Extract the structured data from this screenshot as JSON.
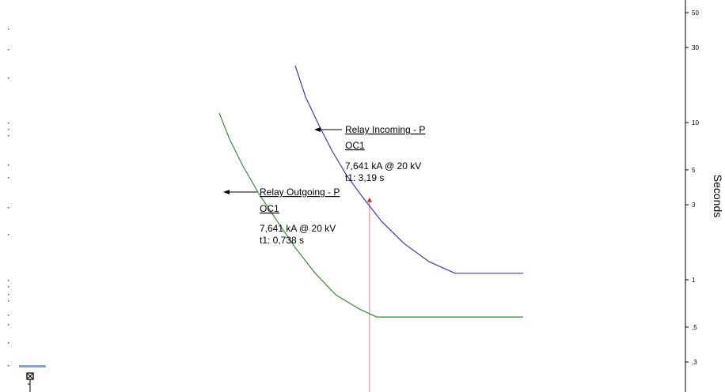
{
  "chart_data": {
    "type": "line",
    "ylabel": "Seconds",
    "y_scale": "log",
    "ylim": [
      0.2,
      55
    ],
    "y_ticks": [
      {
        "value": 50,
        "label": "50"
      },
      {
        "value": 30,
        "label": "30"
      },
      {
        "value": 10,
        "label": "10"
      },
      {
        "value": 5,
        "label": "5"
      },
      {
        "value": 3,
        "label": "3"
      },
      {
        "value": 1,
        "label": "1"
      },
      {
        "value": 0.5,
        "label": ",5"
      },
      {
        "value": 0.3,
        "label": ",3"
      }
    ],
    "series": [
      {
        "name": "Relay Incoming - P OC1",
        "color": "#3b3bb0",
        "points": [
          [
            1.0,
            23
          ],
          [
            1.1,
            14.5
          ],
          [
            1.25,
            9.4
          ],
          [
            1.4,
            6.6
          ],
          [
            1.6,
            4.6
          ],
          [
            1.85,
            3.35
          ],
          [
            2.2,
            2.35
          ],
          [
            2.7,
            1.7
          ],
          [
            3.4,
            1.3
          ],
          [
            4.3,
            1.1
          ],
          [
            4.3,
            1.1
          ],
          [
            8.0,
            1.1
          ]
        ]
      },
      {
        "name": "Relay Outgoing - P OC1",
        "color": "#3a8a3a",
        "points": [
          [
            0.5,
            11.5
          ],
          [
            0.55,
            7.8
          ],
          [
            0.62,
            5.3
          ],
          [
            0.72,
            3.5
          ],
          [
            0.85,
            2.35
          ],
          [
            1.0,
            1.6
          ],
          [
            1.2,
            1.1
          ],
          [
            1.45,
            0.8
          ],
          [
            1.8,
            0.65
          ],
          [
            2.1,
            0.58
          ],
          [
            8.0,
            0.58
          ]
        ]
      }
    ],
    "annotations": [
      {
        "series": "Relay Incoming - P OC1",
        "title_line1": "Relay Incoming - P",
        "title_line2": "OC1",
        "current": "7,641 kA @ 20 kV",
        "time": "t1: 3,19 s",
        "time_value": 3.19
      },
      {
        "series": "Relay Outgoing - P OC1",
        "title_line1": "Relay Outgoing - P",
        "title_line2": "OC1",
        "current": "7,641 kA @ 20 kV",
        "time": "t1: 0,738 s",
        "time_value": 0.738
      }
    ],
    "fault_current_x": 1.97,
    "marker_color": "#c03030",
    "cursor_line_color": "#d08080"
  }
}
